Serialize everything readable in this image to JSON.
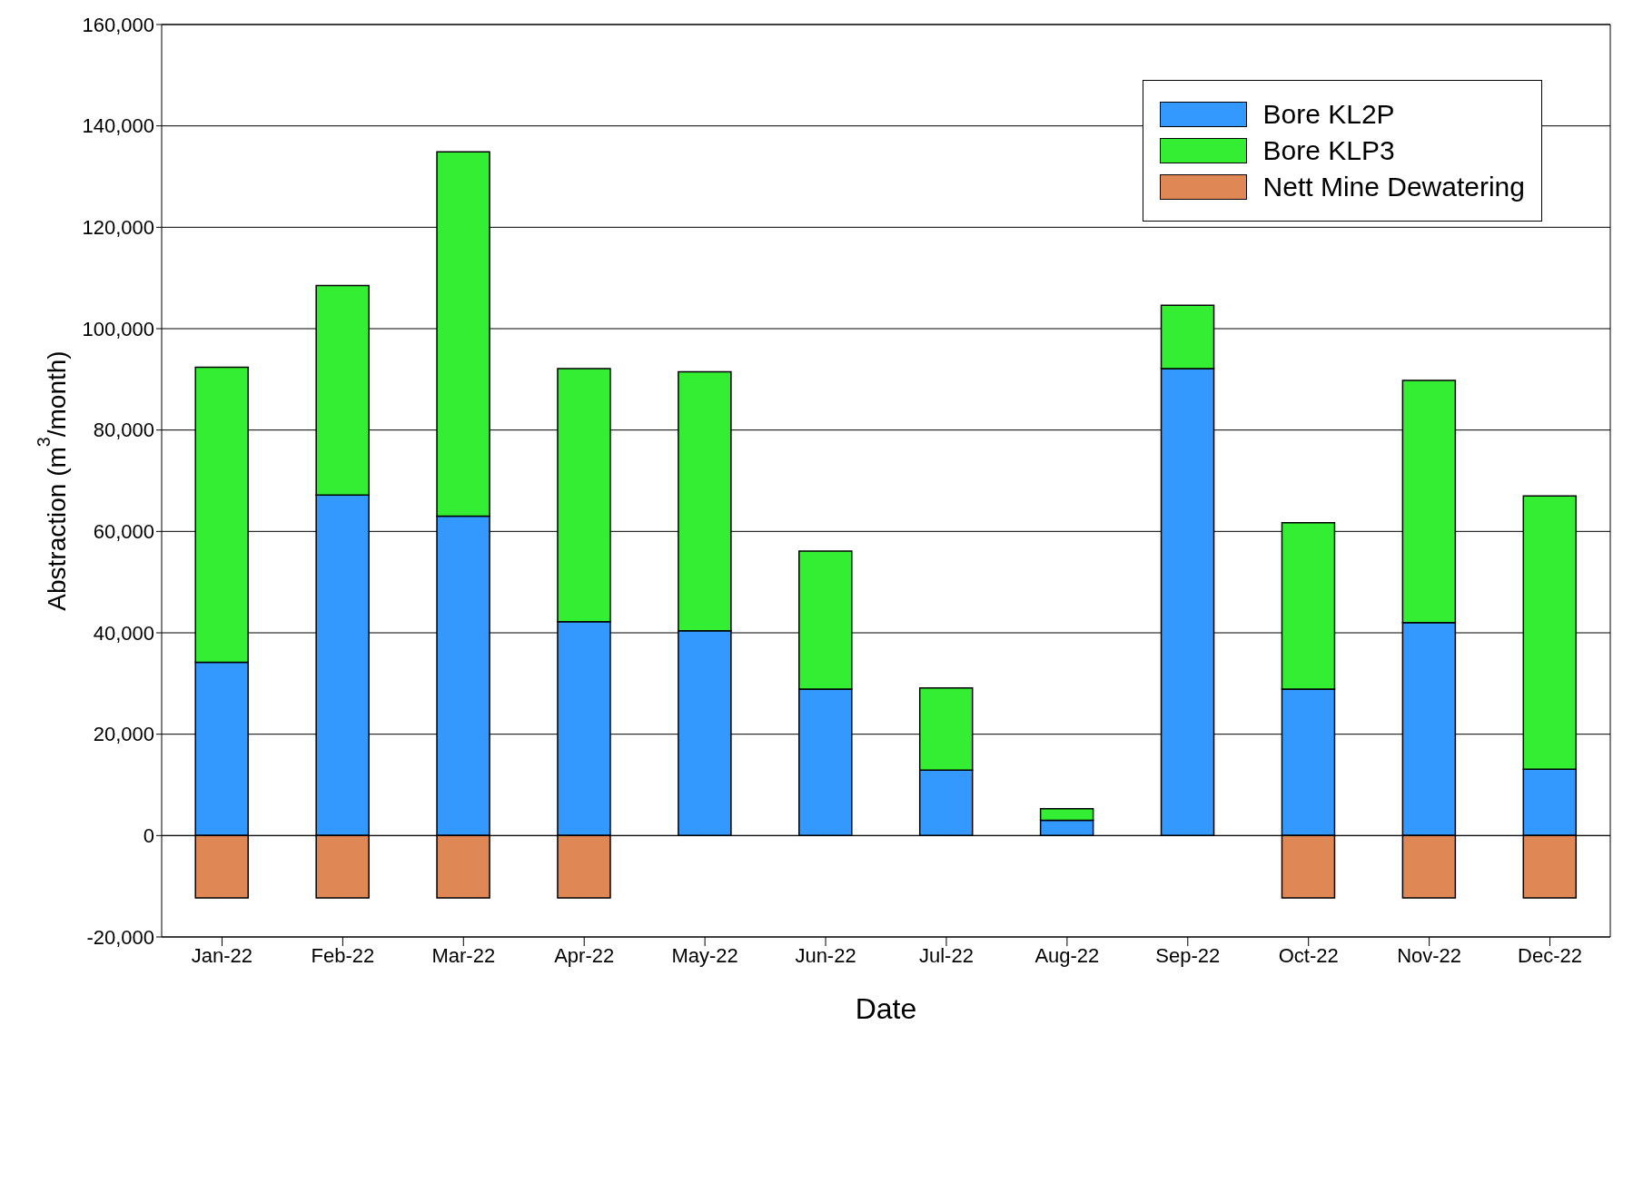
{
  "chart_data": {
    "type": "bar",
    "stacked": true,
    "xlabel": "Date",
    "ylabel": "Abstraction (m$^{3}$/month)",
    "categories": [
      "Jan-22",
      "Feb-22",
      "Mar-22",
      "Apr-22",
      "May-22",
      "Jun-22",
      "Jul-22",
      "Aug-22",
      "Sep-22",
      "Oct-22",
      "Nov-22",
      "Dec-22"
    ],
    "series": [
      {
        "name": "Bore KL2P",
        "color": "#3399ff",
        "values": [
          34200,
          67200,
          63000,
          42200,
          40400,
          28900,
          12900,
          3000,
          92100,
          28900,
          42000,
          13100
        ]
      },
      {
        "name": "Bore KLP3",
        "color": "#33ee33",
        "values": [
          58200,
          41300,
          71900,
          49900,
          51100,
          27200,
          16200,
          2300,
          12500,
          32800,
          47800,
          53900
        ]
      },
      {
        "name": "Nett Mine Dewatering",
        "color": "#e08855",
        "values": [
          -12300,
          -12300,
          -12300,
          -12300,
          null,
          null,
          null,
          null,
          null,
          -12300,
          -12300,
          -12300
        ]
      }
    ],
    "ylim": [
      -20000,
      160000
    ],
    "yticks": [
      {
        "value": -20000,
        "label": "-20,000"
      },
      {
        "value": 0,
        "label": "0"
      },
      {
        "value": 20000,
        "label": "20,000"
      },
      {
        "value": 40000,
        "label": "40,000"
      },
      {
        "value": 60000,
        "label": "60,000"
      },
      {
        "value": 80000,
        "label": "80,000"
      },
      {
        "value": 100000,
        "label": "100,000"
      },
      {
        "value": 120000,
        "label": "120,000"
      },
      {
        "value": 140000,
        "label": "140,000"
      },
      {
        "value": 160000,
        "label": "160,000"
      }
    ],
    "grid": "y",
    "legend": "top right"
  }
}
